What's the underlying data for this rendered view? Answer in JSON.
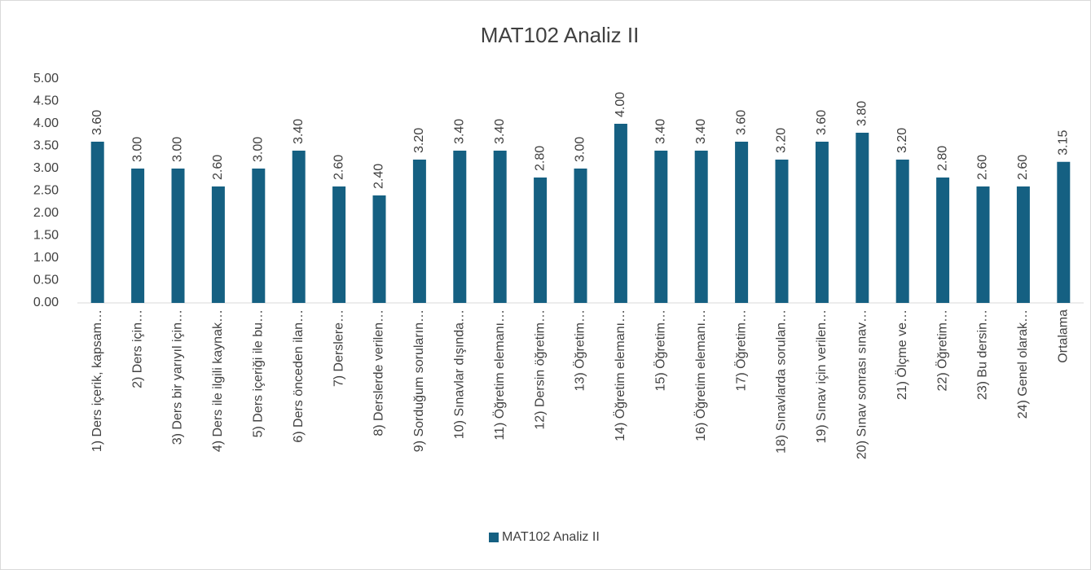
{
  "chart_data": {
    "type": "bar",
    "title": "MAT102 Analiz II",
    "categories": [
      "1) Ders içerik, kapsam…",
      "2) Ders için…",
      "3) Ders bir yarıyıl için…",
      "4) Ders ile ilgili kaynak…",
      "5) Ders içeriği ile bu…",
      "6) Ders önceden ilan…",
      "7) Derslere…",
      "8) Derslerde verilen…",
      "9) Sorduğum soruların…",
      "10) Sınavlar dışında…",
      "11)  Öğretim elemanı…",
      "12) Dersin öğretim…",
      "13) Öğretim…",
      "14) Öğretim elemanı…",
      "15) Öğretim…",
      "16) Öğretim elemanı…",
      "17) Öğretim…",
      "18) Sınavlarda sorulan…",
      "19) Sınav için verilen…",
      "20) Sınav sonrası sınav…",
      "21) Ölçme ve…",
      "22)  Öğretim…",
      "23) Bu dersin…",
      "24) Genel olarak…",
      "Ortalama"
    ],
    "series": [
      {
        "name": "MAT102 Analiz II",
        "color": "#156082",
        "values": [
          3.6,
          3,
          3,
          2.6,
          3,
          3.4,
          2.6,
          2.4,
          3.2,
          3.4,
          3.4,
          2.8,
          3,
          4,
          3.4,
          3.4,
          3.6,
          3.2,
          3.6,
          3.8,
          3.2,
          2.8,
          2.6,
          2.6,
          3.15
        ],
        "value_labels": [
          "3.60",
          "3.00",
          "3.00",
          "2.60",
          "3.00",
          "3.40",
          "2.60",
          "2.40",
          "3.20",
          "3.40",
          "3.40",
          "2.80",
          "3.00",
          "4.00",
          "3.40",
          "3.40",
          "3.60",
          "3.20",
          "3.60",
          "3.80",
          "3.20",
          "2.80",
          "2.60",
          "2.60",
          "3.15"
        ]
      }
    ],
    "ylim": [
      0,
      5
    ],
    "yticks": [
      {
        "value": 0,
        "label": "0.00"
      },
      {
        "value": 0.5,
        "label": "0.50"
      },
      {
        "value": 1,
        "label": "1.00"
      },
      {
        "value": 1.5,
        "label": "1.50"
      },
      {
        "value": 2,
        "label": "2.00"
      },
      {
        "value": 2.5,
        "label": "2.50"
      },
      {
        "value": 3,
        "label": "3.00"
      },
      {
        "value": 3.5,
        "label": "3.50"
      },
      {
        "value": 4,
        "label": "4.00"
      },
      {
        "value": 4.5,
        "label": "4.50"
      },
      {
        "value": 5,
        "label": "5.00"
      }
    ],
    "grid": false,
    "legend": "bottom"
  }
}
